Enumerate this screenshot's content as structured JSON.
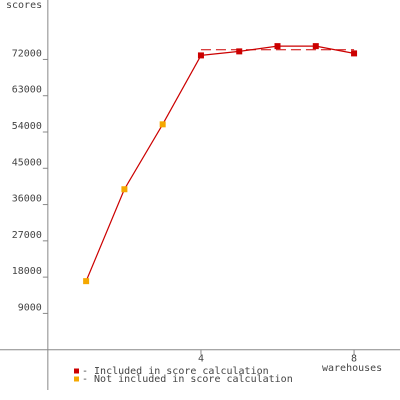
{
  "chart_data": {
    "type": "line",
    "y_label": "scores",
    "x_label": "warehouses",
    "series": [
      {
        "name": "- Included in score calculation",
        "color": "#cc0000",
        "x": [
          4,
          5,
          6,
          7,
          8
        ],
        "values": [
          73000,
          74000,
          75300,
          75300,
          73500
        ]
      },
      {
        "name": "- Not included in score calculation",
        "color": "#f5a800",
        "x": [
          1,
          2,
          3
        ],
        "values": [
          17000,
          39800,
          55900
        ]
      }
    ],
    "line_color": "#cc0000",
    "reference_line": {
      "value": 74400,
      "x": [
        4,
        8
      ],
      "color": "#cc0000"
    },
    "xlim": [
      -1.25,
      9.2
    ],
    "xticks": [
      4,
      8
    ],
    "ylim": [
      -10000,
      86000
    ],
    "yticks": [
      9000,
      18000,
      27000,
      36000,
      45000,
      54000,
      63000,
      72000
    ]
  }
}
